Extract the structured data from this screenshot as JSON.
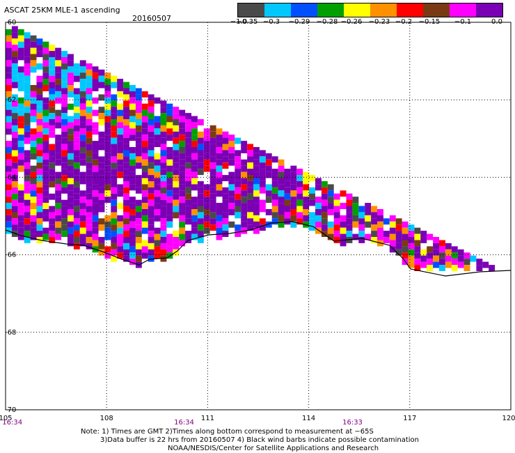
{
  "header": {
    "title": "ASCAT 25KM MLE-1 ascending",
    "date": "20160507"
  },
  "colorbar": {
    "colors": [
      "#4a4a4a",
      "#00c8ff",
      "#0050ff",
      "#00a000",
      "#ffff00",
      "#ff9000",
      "#ff0000",
      "#7a3a14",
      "#ff00ff",
      "#7a00b4"
    ],
    "labels": [
      "−1.0",
      "−0.35",
      "−0.3",
      "−0.29",
      "−0.28",
      "−0.26",
      "−0.23",
      "−0.2",
      "−0.15",
      "−0.1",
      "0.0"
    ]
  },
  "axes": {
    "lon_ticks": [
      "105",
      "108",
      "111",
      "114",
      "117",
      "120"
    ],
    "lat_ticks": [
      "-60",
      "-62",
      "-64",
      "-66",
      "-68",
      "-70"
    ],
    "lon_range": [
      105,
      120
    ],
    "lat_range": [
      -60,
      -70
    ],
    "time_labels": [
      {
        "text": "16:34",
        "lon": 105.2
      },
      {
        "text": "16:34",
        "lon": 110.3
      },
      {
        "text": "16:33",
        "lon": 115.3
      }
    ],
    "time_color": "#800080"
  },
  "notes": [
    "Note: 1) Times are GMT 2)Times along bottom correspond to measurement at −65S",
    "3)Data buffer is 22 hrs from 20160507 4) Black wind barbs indicate possible contamination",
    "NOAA/NESDIS/Center for Satellite Applications and Research"
  ],
  "map": {
    "coastline_color": "#000000",
    "grid_style": "dotted",
    "field_value_range": [
      -1.0,
      0.0
    ]
  }
}
